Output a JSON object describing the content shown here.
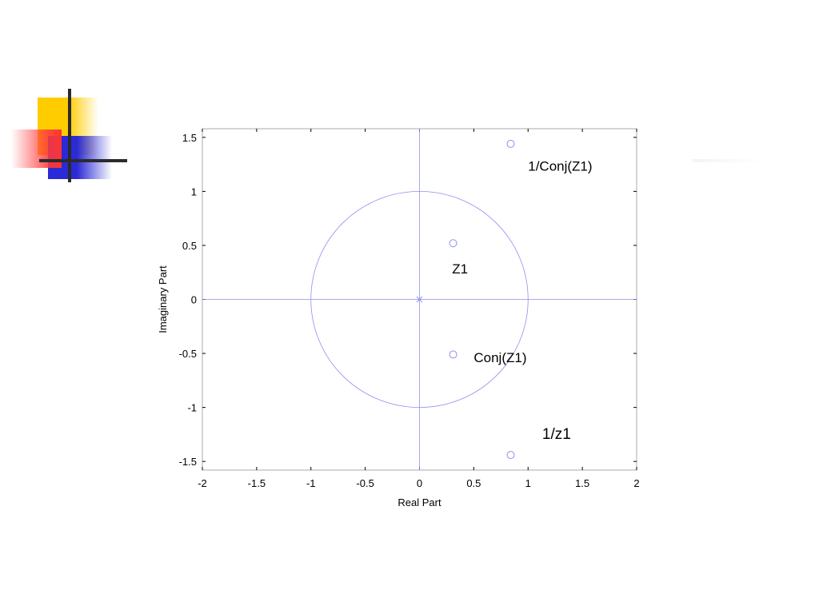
{
  "colors": {
    "plot_line": "#8f8ff0",
    "frame": "#000000",
    "background": "#ffffff",
    "decor_yellow": "#ffcc00",
    "decor_blue": "#2a2ad6",
    "decor_red": "#ff3333",
    "decor_cross": "#2b2b2b"
  },
  "chart_data": {
    "type": "scatter",
    "title": "",
    "xlabel": "Real Part",
    "ylabel": "Imaginary Part",
    "xlim": [
      -2,
      2
    ],
    "ylim": [
      -1.58,
      1.58
    ],
    "xticks": [
      -2,
      -1.5,
      -1,
      -0.5,
      0,
      0.5,
      1,
      1.5,
      2
    ],
    "xtick_labels": [
      "-2",
      "-1.5",
      "-1",
      "-0.5",
      "0",
      "0.5",
      "1",
      "1.5",
      "2"
    ],
    "yticks": [
      1.5,
      1,
      0.5,
      0,
      -0.5,
      -1,
      -1.5
    ],
    "ytick_labels": [
      "1.5",
      "1",
      "0.5",
      "0",
      "-0.5",
      "-1",
      "-1.5"
    ],
    "grid": false,
    "unit_circle": {
      "radius": 1
    },
    "reference_lines": [
      "real-axis",
      "imaginary-axis"
    ],
    "poles": [
      {
        "x": 0,
        "y": 0,
        "marker": "x"
      }
    ],
    "zeros": [
      {
        "x": 0.31,
        "y": 0.52,
        "marker": "o"
      },
      {
        "x": 0.31,
        "y": -0.51,
        "marker": "o"
      },
      {
        "x": 0.84,
        "y": 1.44,
        "marker": "o"
      },
      {
        "x": 0.84,
        "y": -1.44,
        "marker": "o"
      }
    ],
    "annotations": [
      {
        "text": "Z1",
        "x": 0.3,
        "y": 0.24,
        "size": 17
      },
      {
        "text": "Conj(Z1)",
        "x": 0.5,
        "y": -0.58,
        "size": 17
      },
      {
        "text": "1/Conj(Z1)",
        "x": 1.0,
        "y": 1.19,
        "size": 17
      },
      {
        "text": "1/z1",
        "x": 1.13,
        "y": -1.29,
        "size": 19
      }
    ]
  }
}
